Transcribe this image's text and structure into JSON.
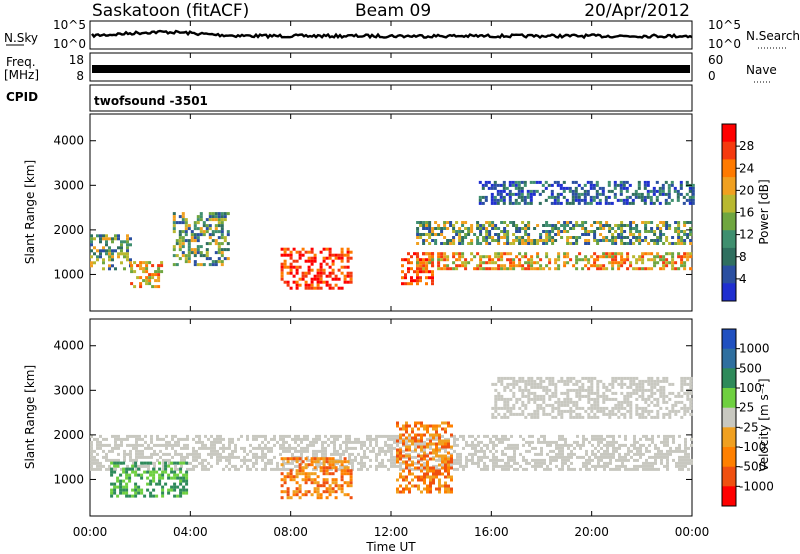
{
  "header": {
    "station": "Saskatoon (fitACF)",
    "beam": "Beam 09",
    "date": "20/Apr/2012"
  },
  "noise_panel": {
    "left_label": "N.Sky",
    "right_label": "N.Search",
    "left_ticks": [
      "10^5",
      "10^0"
    ],
    "right_ticks": [
      "10^5",
      "10^0"
    ]
  },
  "freq_panel": {
    "left_label_1": "Freq.",
    "left_label_2": "[MHz]",
    "right_label": "Nave",
    "left_ticks": [
      "18",
      "8"
    ],
    "right_ticks": [
      "60",
      "0"
    ]
  },
  "cpid": {
    "label": "CPID",
    "value": "twofsound -3501"
  },
  "chart_data": [
    {
      "type": "heatmap",
      "id": "power",
      "ylabel": "Slant Range [km]",
      "xlabel": "",
      "x_ticks": [
        "00:00",
        "04:00",
        "08:00",
        "12:00",
        "16:00",
        "20:00",
        "00:00"
      ],
      "y_ticks": [
        1000,
        2000,
        3000,
        4000
      ],
      "ylim": [
        180,
        4600
      ],
      "colorbar": {
        "label": "Power [dB]",
        "ticks": [
          "28",
          "24",
          "20",
          "16",
          "12",
          "8",
          "4"
        ],
        "colors": [
          "#ff0000",
          "#f53a0f",
          "#ff7a00",
          "#f0a020",
          "#b8b830",
          "#6fa640",
          "#3f8f6f",
          "#2f6f5f",
          "#2a4fa0",
          "#1f2fd0"
        ]
      },
      "echo_bands": [
        {
          "start_h": 0.0,
          "end_h": 1.6,
          "range_km": [
            1100,
            1900
          ],
          "level": "medium"
        },
        {
          "start_h": 1.6,
          "end_h": 2.8,
          "range_km": [
            700,
            1300
          ],
          "level": "high"
        },
        {
          "start_h": 3.3,
          "end_h": 5.5,
          "range_km": [
            1200,
            2400
          ],
          "level": "medium"
        },
        {
          "start_h": 7.6,
          "end_h": 10.4,
          "range_km": [
            700,
            1600
          ],
          "level": "very high"
        },
        {
          "start_h": 12.4,
          "end_h": 13.6,
          "range_km": [
            800,
            1500
          ],
          "level": "very high"
        },
        {
          "start_h": 13.0,
          "end_h": 24.0,
          "range_km": [
            1100,
            1500
          ],
          "level": "high"
        },
        {
          "start_h": 13.0,
          "end_h": 24.0,
          "range_km": [
            1700,
            2200
          ],
          "level": "medium"
        },
        {
          "start_h": 15.5,
          "end_h": 24.0,
          "range_km": [
            2600,
            3100
          ],
          "level": "low"
        }
      ]
    },
    {
      "type": "heatmap",
      "id": "velocity",
      "ylabel": "Slant Range [km]",
      "xlabel": "Time UT",
      "x_ticks": [
        "00:00",
        "04:00",
        "08:00",
        "12:00",
        "16:00",
        "20:00",
        "00:00"
      ],
      "y_ticks": [
        1000,
        2000,
        3000,
        4000
      ],
      "ylim": [
        180,
        4600
      ],
      "colorbar": {
        "label": "Velocity [m s⁻¹]",
        "ticks": [
          "1000",
          "500",
          "100",
          "25",
          "-25",
          "-100",
          "-500",
          "-1000"
        ],
        "colors": [
          "#2050c0",
          "#2f6f9f",
          "#2e8a5a",
          "#6fd040",
          "#c8c8c0",
          "#f0a020",
          "#ff8000",
          "#f05010",
          "#ff0000"
        ]
      },
      "echo_bands": [
        {
          "start_h": 0.0,
          "end_h": 24.0,
          "range_km": [
            1200,
            2000
          ],
          "level": "near zero (ground scatter)"
        },
        {
          "start_h": 0.8,
          "end_h": 3.8,
          "range_km": [
            600,
            1400
          ],
          "level": "positive (toward)"
        },
        {
          "start_h": 7.6,
          "end_h": 10.4,
          "range_km": [
            600,
            1500
          ],
          "level": "negative (away)"
        },
        {
          "start_h": 12.2,
          "end_h": 14.4,
          "range_km": [
            700,
            2300
          ],
          "level": "negative (away)"
        },
        {
          "start_h": 16.0,
          "end_h": 24.0,
          "range_km": [
            2400,
            3300
          ],
          "level": "near zero (ground scatter)"
        }
      ]
    }
  ]
}
